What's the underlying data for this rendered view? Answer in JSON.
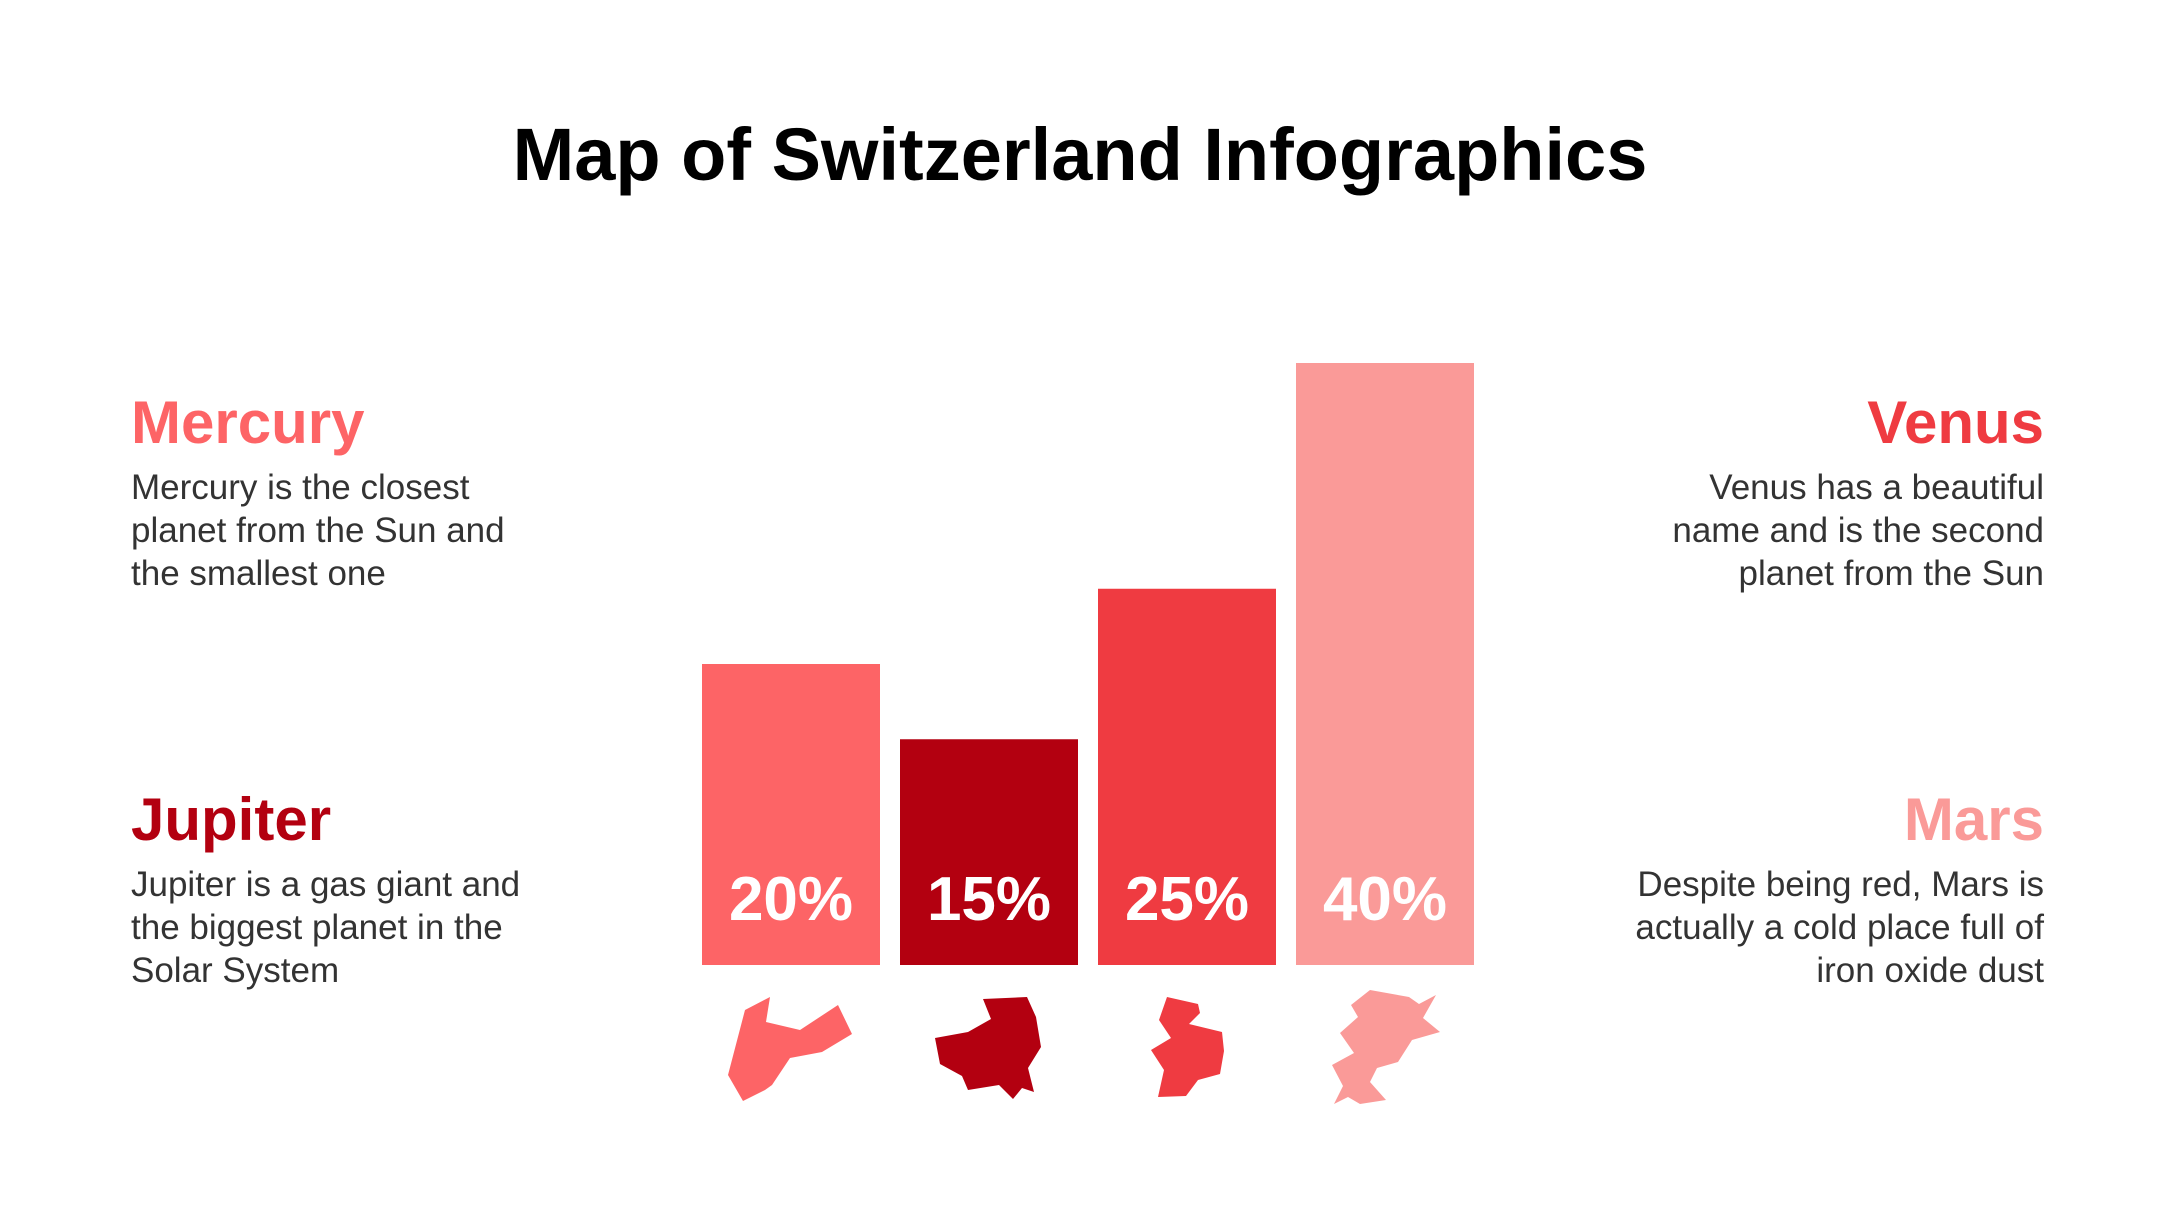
{
  "title": "Map of Switzerland Infographics",
  "items": [
    {
      "name": "Mercury",
      "text": "Mercury is the closest planet from the Sun and the smallest one",
      "color": "#fd6466"
    },
    {
      "name": "Venus",
      "text": "Venus has a beautiful name and is the second planet from the Sun",
      "color": "#ef3b41"
    },
    {
      "name": "Jupiter",
      "text": "Jupiter is a gas giant and the biggest planet in the Solar System",
      "color": "#b30010"
    },
    {
      "name": "Mars",
      "text": "Despite being red, Mars is actually a cold place full of iron oxide dust",
      "color": "#fa9a98"
    }
  ],
  "chart_data": {
    "type": "bar",
    "categories": [
      "Mercury",
      "Jupiter",
      "Venus",
      "Mars"
    ],
    "values": [
      20,
      15,
      25,
      40
    ],
    "labels": [
      "20%",
      "15%",
      "25%",
      "40%"
    ],
    "colors": [
      "#fd6466",
      "#b30010",
      "#ef3b41",
      "#fa9a98"
    ],
    "ylim": [
      0,
      40
    ],
    "icons": [
      "canton-shape-icon",
      "canton-shape-icon",
      "canton-shape-icon",
      "canton-shape-icon"
    ]
  }
}
